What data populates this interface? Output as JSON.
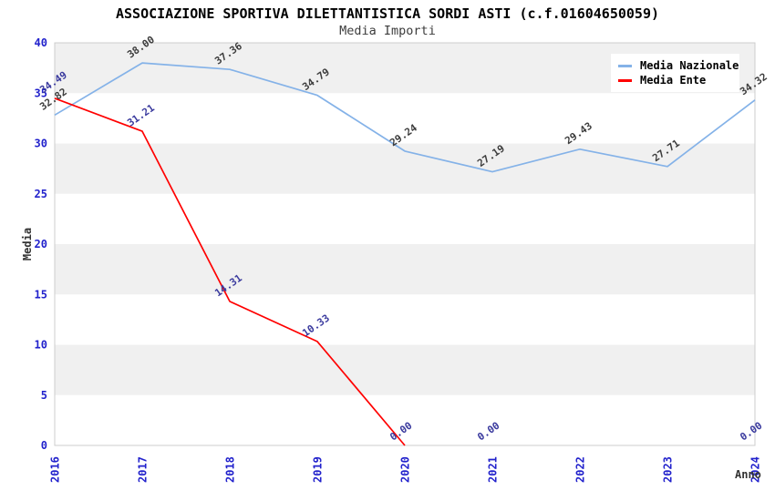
{
  "title": "ASSOCIAZIONE SPORTIVA DILETTANTISTICA SORDI ASTI (c.f.01604650059)",
  "subtitle": "Media Importi",
  "y_axis_title": "Media",
  "x_axis_title": "Anno",
  "legend": {
    "position": "top-right",
    "items": [
      {
        "label": "Media Nazionale",
        "color": "#84b2e8"
      },
      {
        "label": "Media Ente",
        "color": "#ff0000"
      }
    ]
  },
  "style": {
    "background": "#ffffff",
    "band_color": "#f0f0f0",
    "plot_border_color": "#cccccc",
    "tick_label_color": "#2222cc"
  },
  "chart_data": {
    "type": "line",
    "title": "ASSOCIAZIONE SPORTIVA DILETTANTISTICA SORDI ASTI (c.f.01604650059)",
    "subtitle": "Media Importi",
    "xlabel": "Anno",
    "ylabel": "Media",
    "categories": [
      "2016",
      "2017",
      "2018",
      "2019",
      "2020",
      "2021",
      "2022",
      "2023",
      "2024"
    ],
    "series": [
      {
        "name": "Media Nazionale",
        "color": "#84b2e8",
        "label_color": "#3c3c3c",
        "values": [
          32.82,
          38.0,
          37.36,
          34.79,
          29.24,
          27.19,
          29.43,
          27.71,
          34.32
        ]
      },
      {
        "name": "Media Ente",
        "color": "#ff0000",
        "label_color": "#3a3a9e",
        "values": [
          34.49,
          31.21,
          14.31,
          10.33,
          0.0,
          0.0,
          null,
          null,
          0.0
        ],
        "line_segments": [
          [
            0,
            4
          ]
        ]
      }
    ],
    "ylim": [
      0,
      40
    ],
    "ytick_step": 5,
    "grid": "alternating-horizontal-bands",
    "legend_position": "top-right",
    "value_labels": "each point, 2 decimals, rotated"
  }
}
